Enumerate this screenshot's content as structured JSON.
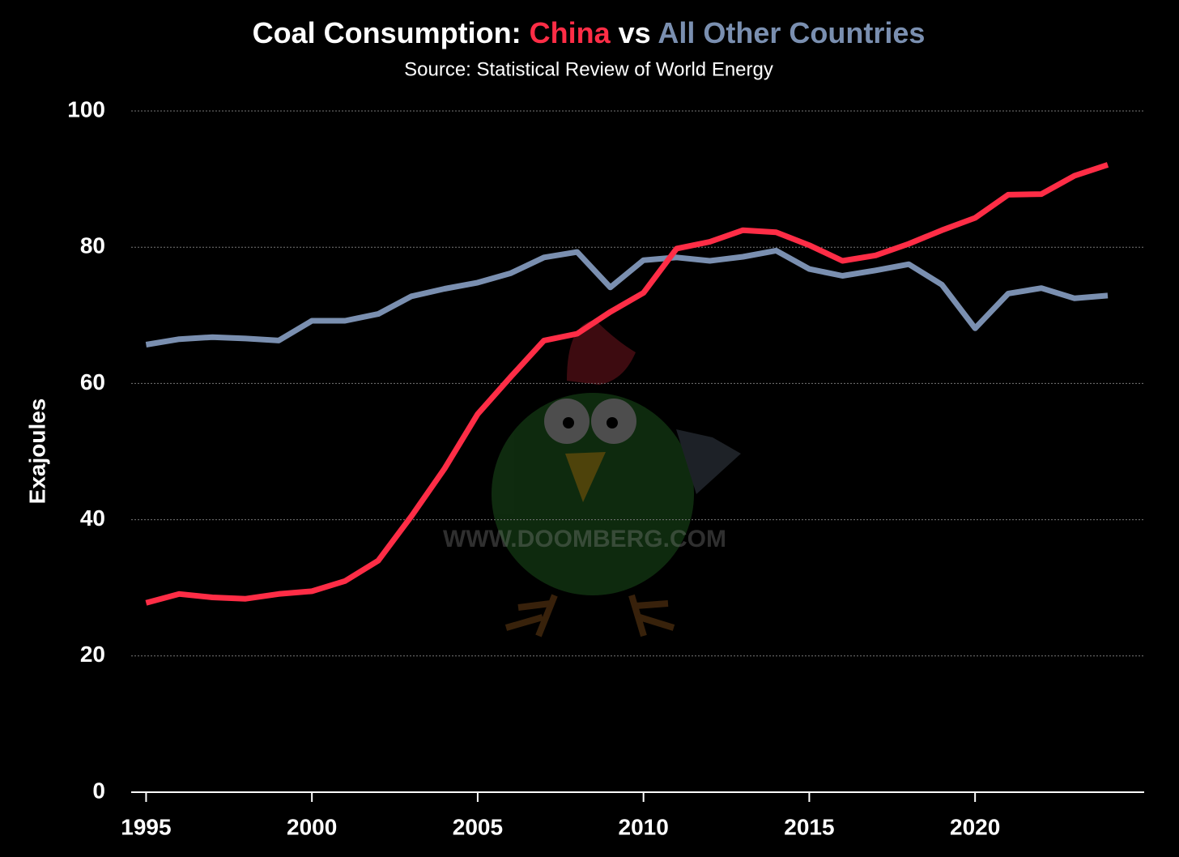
{
  "chart_data": {
    "type": "line",
    "title": [
      "Coal Consumption:",
      "vs"
    ],
    "subtitle": "Source: Statistical Review of World Energy",
    "y_label": "Exajoules",
    "watermark": "WWW.DOOMBERG.COM",
    "x": [
      1995,
      1996,
      1997,
      1998,
      1999,
      2000,
      2001,
      2002,
      2003,
      2004,
      2005,
      2006,
      2007,
      2008,
      2009,
      2010,
      2011,
      2012,
      2013,
      2014,
      2015,
      2016,
      2017,
      2018,
      2019,
      2020,
      2021,
      2022,
      2023,
      2024
    ],
    "series": [
      {
        "name": "China",
        "color": "#ff2d46",
        "values": [
          27.8,
          29.1,
          28.6,
          28.4,
          29.1,
          29.5,
          31,
          34,
          40.5,
          47.5,
          55.5,
          61,
          66.3,
          67.3,
          70.5,
          73.3,
          79.8,
          80.8,
          82.5,
          82.2,
          80.3,
          78,
          78.8,
          80.5,
          82.5,
          84.3,
          87.7,
          87.8,
          90.5,
          92.1
        ]
      },
      {
        "name": "All Other Countries",
        "color": "#7a8fb0",
        "values": [
          65.7,
          66.5,
          66.8,
          66.6,
          66.3,
          69.2,
          69.2,
          70.2,
          72.8,
          73.9,
          74.8,
          76.2,
          78.5,
          79.3,
          74.1,
          78.1,
          78.5,
          78.0,
          78.6,
          79.5,
          76.8,
          75.8,
          76.6,
          77.5,
          74.5,
          68.1,
          73.2,
          74.0,
          72.5,
          72.9
        ]
      }
    ],
    "xlim": [
      1994.55,
      2025.1
    ],
    "xticks": [
      1995,
      2000,
      2005,
      2010,
      2015,
      2020
    ],
    "ylim": [
      0,
      100
    ],
    "yticks": [
      0,
      20,
      40,
      60,
      80,
      100
    ],
    "grid": true
  }
}
